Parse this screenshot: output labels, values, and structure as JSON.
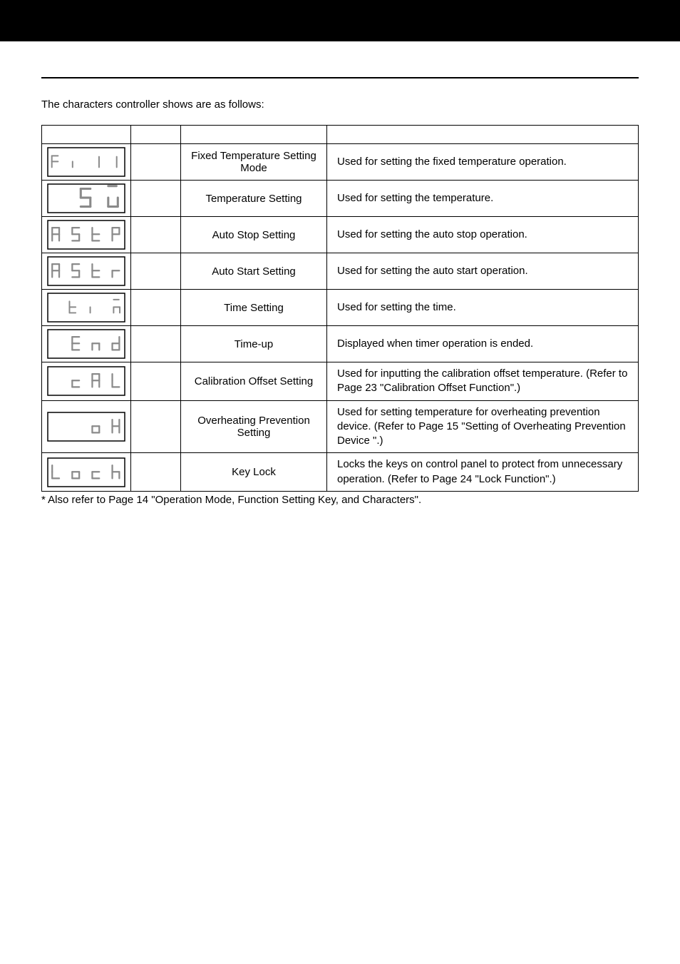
{
  "intro": "The characters controller shows are as follows:",
  "footnote": "* Also refer to Page 14 \"Operation Mode, Function Setting Key, and Characters\".",
  "rows": [
    {
      "name": "Fixed Temperature Setting Mode",
      "desc": "Used for setting the fixed temperature operation."
    },
    {
      "name": "Temperature Setting",
      "desc": "Used for setting the temperature."
    },
    {
      "name": "Auto Stop Setting",
      "desc": "Used for setting the auto stop operation."
    },
    {
      "name": "Auto Start Setting",
      "desc": "Used for setting the auto start operation."
    },
    {
      "name": "Time Setting",
      "desc": "Used for setting the time."
    },
    {
      "name": "Time-up",
      "desc": "Displayed when timer operation is ended."
    },
    {
      "name": "Calibration Offset Setting",
      "desc": "Used for inputting the calibration offset temperature. (Refer to Page 23 \"Calibration Offset Function\".)"
    },
    {
      "name": "Overheating Prevention Setting",
      "desc": "Used for setting temperature for overheating prevention device. (Refer to Page 15 \"Setting of Overheating Prevention Device \".)"
    },
    {
      "name": "Key Lock",
      "desc": "Locks the keys on control panel to protect from unnecessary operation. (Refer to Page 24 \"Lock Function\".)"
    }
  ],
  "seg_color": "#8a8a8a",
  "seg_stroke_width": 3.2,
  "display_box": {
    "width": 110,
    "height": 42
  }
}
